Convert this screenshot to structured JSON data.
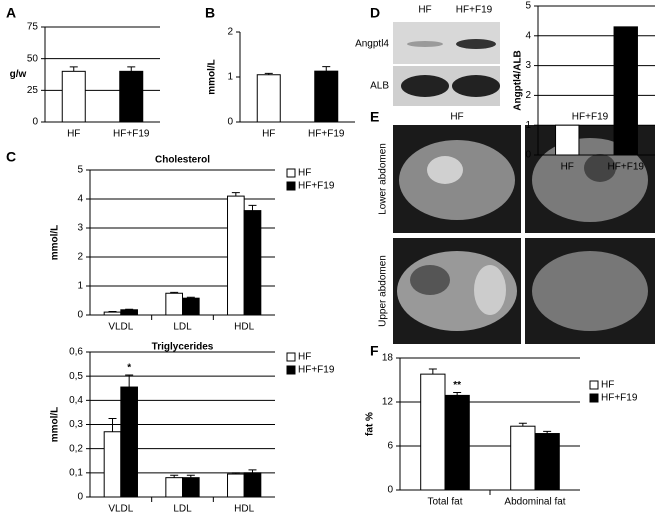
{
  "panel_labels": [
    "A",
    "B",
    "C",
    "D",
    "E",
    "F"
  ],
  "blot": {
    "lanes": [
      "HF",
      "HF+F19"
    ],
    "rows": [
      "Angptl4",
      "ALB"
    ]
  },
  "mri": {
    "columns": [
      "HF",
      "HF+F19"
    ],
    "rows": [
      "Lower abdomen",
      "Upper abdomen"
    ]
  },
  "chart_data": [
    {
      "type": "bar",
      "y_label": "g/w",
      "categories": [
        "HF",
        "HF+F19"
      ],
      "values": [
        40,
        40
      ],
      "errors": [
        3.5,
        3.5
      ],
      "colors": [
        "#ffffff",
        "#000000"
      ],
      "ylim": [
        0,
        75
      ],
      "yticks": [
        0,
        25,
        50,
        75
      ],
      "grid": true
    },
    {
      "type": "bar",
      "y_label": "mmol/L",
      "categories": [
        "HF",
        "HF+F19"
      ],
      "values": [
        1.05,
        1.13
      ],
      "errors": [
        0.03,
        0.1
      ],
      "colors": [
        "#ffffff",
        "#000000"
      ],
      "ylim": [
        0,
        2
      ],
      "yticks": [
        0,
        1,
        2
      ],
      "grid": false
    },
    {
      "type": "grouped_bar",
      "title": "Cholesterol",
      "y_label": "mmol/L",
      "categories": [
        "VLDL",
        "LDL",
        "HDL"
      ],
      "series": [
        {
          "name": "HF",
          "color": "#ffffff",
          "values": [
            0.1,
            0.75,
            4.1
          ],
          "errors": [
            0.02,
            0.03,
            0.12
          ]
        },
        {
          "name": "HF+F19",
          "color": "#000000",
          "values": [
            0.18,
            0.58,
            3.6
          ],
          "errors": [
            0.02,
            0.03,
            0.18
          ]
        }
      ],
      "ylim": [
        0,
        5
      ],
      "yticks": [
        0,
        1,
        2,
        3,
        4,
        5
      ],
      "grid": true,
      "legend": "top-right"
    },
    {
      "type": "grouped_bar",
      "title": "Triglycerides",
      "y_label": "mmol/L",
      "categories": [
        "VLDL",
        "LDL",
        "HDL"
      ],
      "series": [
        {
          "name": "HF",
          "color": "#ffffff",
          "values": [
            0.27,
            0.08,
            0.095
          ],
          "errors": [
            0.055,
            0.01,
            0.005
          ]
        },
        {
          "name": "HF+F19",
          "color": "#000000",
          "values": [
            0.455,
            0.08,
            0.1
          ],
          "errors": [
            0.05,
            0.01,
            0.012
          ]
        }
      ],
      "annotation": "*",
      "ylim": [
        0,
        0.6
      ],
      "yticks": [
        0,
        {
          "value": 0.1,
          "label": "0,1"
        },
        {
          "value": 0.2,
          "label": "0,2"
        },
        {
          "value": 0.3,
          "label": "0,3"
        },
        {
          "value": 0.4,
          "label": "0,4"
        },
        {
          "value": 0.5,
          "label": "0,5"
        },
        {
          "value": 0.6,
          "label": "0,6"
        }
      ],
      "grid": true,
      "legend": "top-right"
    },
    {
      "type": "bar",
      "y_label": "Angptl4/ALB",
      "categories": [
        "HF",
        "HF+F19"
      ],
      "values": [
        1,
        4.3
      ],
      "colors": [
        "#ffffff",
        "#000000"
      ],
      "ylim": [
        0,
        5
      ],
      "yticks": [
        0,
        1,
        2,
        3,
        4,
        5
      ],
      "grid": true
    },
    {
      "type": "grouped_bar",
      "y_label": "fat %",
      "categories": [
        "Total fat",
        "Abdominal fat"
      ],
      "series": [
        {
          "name": "HF",
          "color": "#ffffff",
          "values": [
            15.8,
            8.7
          ],
          "errors": [
            0.7,
            0.4
          ]
        },
        {
          "name": "HF+F19",
          "color": "#000000",
          "values": [
            12.9,
            7.7
          ],
          "errors": [
            0.4,
            0.3
          ]
        }
      ],
      "annotation": "**",
      "ylim": [
        0,
        18
      ],
      "yticks": [
        0,
        6,
        12,
        18
      ],
      "grid": true,
      "legend": "top-right"
    }
  ]
}
